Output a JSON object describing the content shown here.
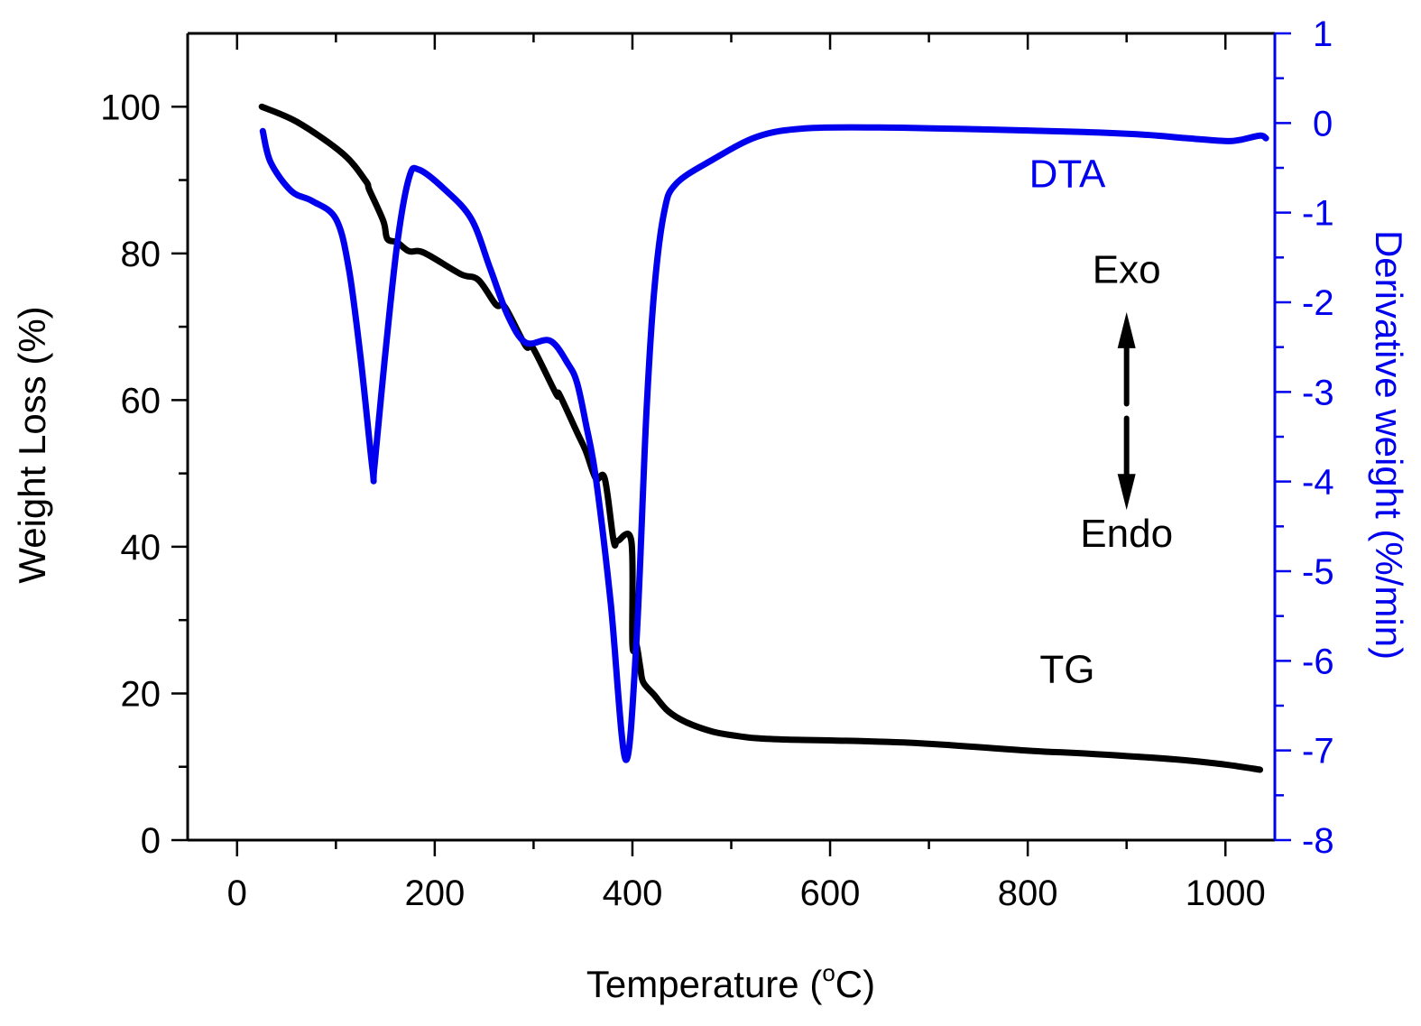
{
  "chart_data": {
    "type": "line",
    "title": "",
    "xlabel": "Temperature (°C)",
    "xlabel_parts": {
      "prefix": "Temperature (",
      "superscript": "o",
      "unit": "C)"
    },
    "ylabel_left": "Weight Loss (%)",
    "ylabel_right": "Derivative weight (%/min)",
    "xlim": [
      -50,
      1050
    ],
    "ylim_left": [
      0,
      110
    ],
    "ylim_right": [
      -8,
      1
    ],
    "x_ticks": [
      0,
      200,
      400,
      600,
      800,
      1000
    ],
    "x_minor_ticks": [
      100,
      300,
      500,
      700,
      900
    ],
    "y_left_ticks": [
      0,
      20,
      40,
      60,
      80,
      100
    ],
    "y_left_minor_ticks": [
      10,
      30,
      50,
      70,
      90
    ],
    "y_right_ticks": [
      1,
      0,
      -1,
      -2,
      -3,
      -4,
      -5,
      -6,
      -7,
      -8
    ],
    "grid": false,
    "legend": "none",
    "colors": {
      "axis": "#000000",
      "right_axis": "#0000ee",
      "tg": "#000000",
      "dta": "#0000ee"
    },
    "series": [
      {
        "name": "TG",
        "axis": "left",
        "color": "#000000",
        "x": [
          25,
          61,
          107,
          130,
          134,
          148,
          152,
          162,
          174,
          189,
          226,
          244,
          262,
          271,
          292,
          299,
          323,
          326,
          344,
          353,
          363,
          372,
          381,
          385,
          399,
          400,
          404,
          408,
          411,
          422,
          436,
          454,
          481,
          506,
          525,
          557,
          600,
          692,
          800,
          860,
          950,
          1000,
          1035
        ],
        "y": [
          100,
          97.9,
          93.6,
          89.9,
          88.6,
          84.4,
          82.0,
          81.5,
          80.3,
          80.1,
          77.2,
          76.4,
          73.0,
          72.7,
          67.4,
          67.2,
          60.8,
          62.2,
          55.6,
          53.0,
          49.3,
          52.4,
          40.8,
          47.5,
          40.7,
          26.7,
          30.9,
          23.5,
          21.5,
          19.8,
          17.6,
          16.1,
          14.8,
          14.2,
          13.9,
          13.7,
          13.6,
          13.2,
          12.2,
          11.8,
          11.0,
          10.3,
          9.6
        ]
      },
      {
        "name": "DTA",
        "axis": "right",
        "color": "#0000ee",
        "x": [
          26,
          34,
          55,
          76,
          100,
          113,
          125,
          137,
          139,
          149,
          162,
          174,
          184,
          210,
          237,
          256,
          274,
          292,
          317,
          335,
          344,
          353,
          363,
          378,
          393,
          404,
          414,
          422,
          432,
          444,
          481,
          527,
          575,
          650,
          750,
          856,
          917,
          962,
          999,
          1014,
          1035,
          1041
        ],
        "y": [
          -0.09,
          -0.44,
          -0.76,
          -0.87,
          -1.07,
          -1.62,
          -2.62,
          -3.86,
          -3.83,
          -2.68,
          -1.35,
          -0.61,
          -0.52,
          -0.74,
          -1.07,
          -1.62,
          -2.15,
          -2.45,
          -2.43,
          -2.69,
          -2.9,
          -3.36,
          -3.96,
          -5.35,
          -7.1,
          -5.8,
          -3.27,
          -1.88,
          -1.0,
          -0.68,
          -0.41,
          -0.15,
          -0.06,
          -0.05,
          -0.07,
          -0.1,
          -0.13,
          -0.17,
          -0.2,
          -0.19,
          -0.14,
          -0.17
        ]
      }
    ],
    "annotations": [
      {
        "text": "DTA",
        "color": "#0000ee",
        "x": 840,
        "y_left": 89
      },
      {
        "text": "TG",
        "color": "#000000",
        "x": 840,
        "y_left": 21.5
      },
      {
        "text": "Exo",
        "color": "#000000",
        "x": 900,
        "y_left": 76
      },
      {
        "text": "Endo",
        "color": "#000000",
        "x": 900,
        "y_left": 40
      },
      {
        "text": "exo-endo-arrow",
        "direction": "up-down",
        "x": 900,
        "y_left_from": 72,
        "y_left_to": 45
      }
    ]
  }
}
